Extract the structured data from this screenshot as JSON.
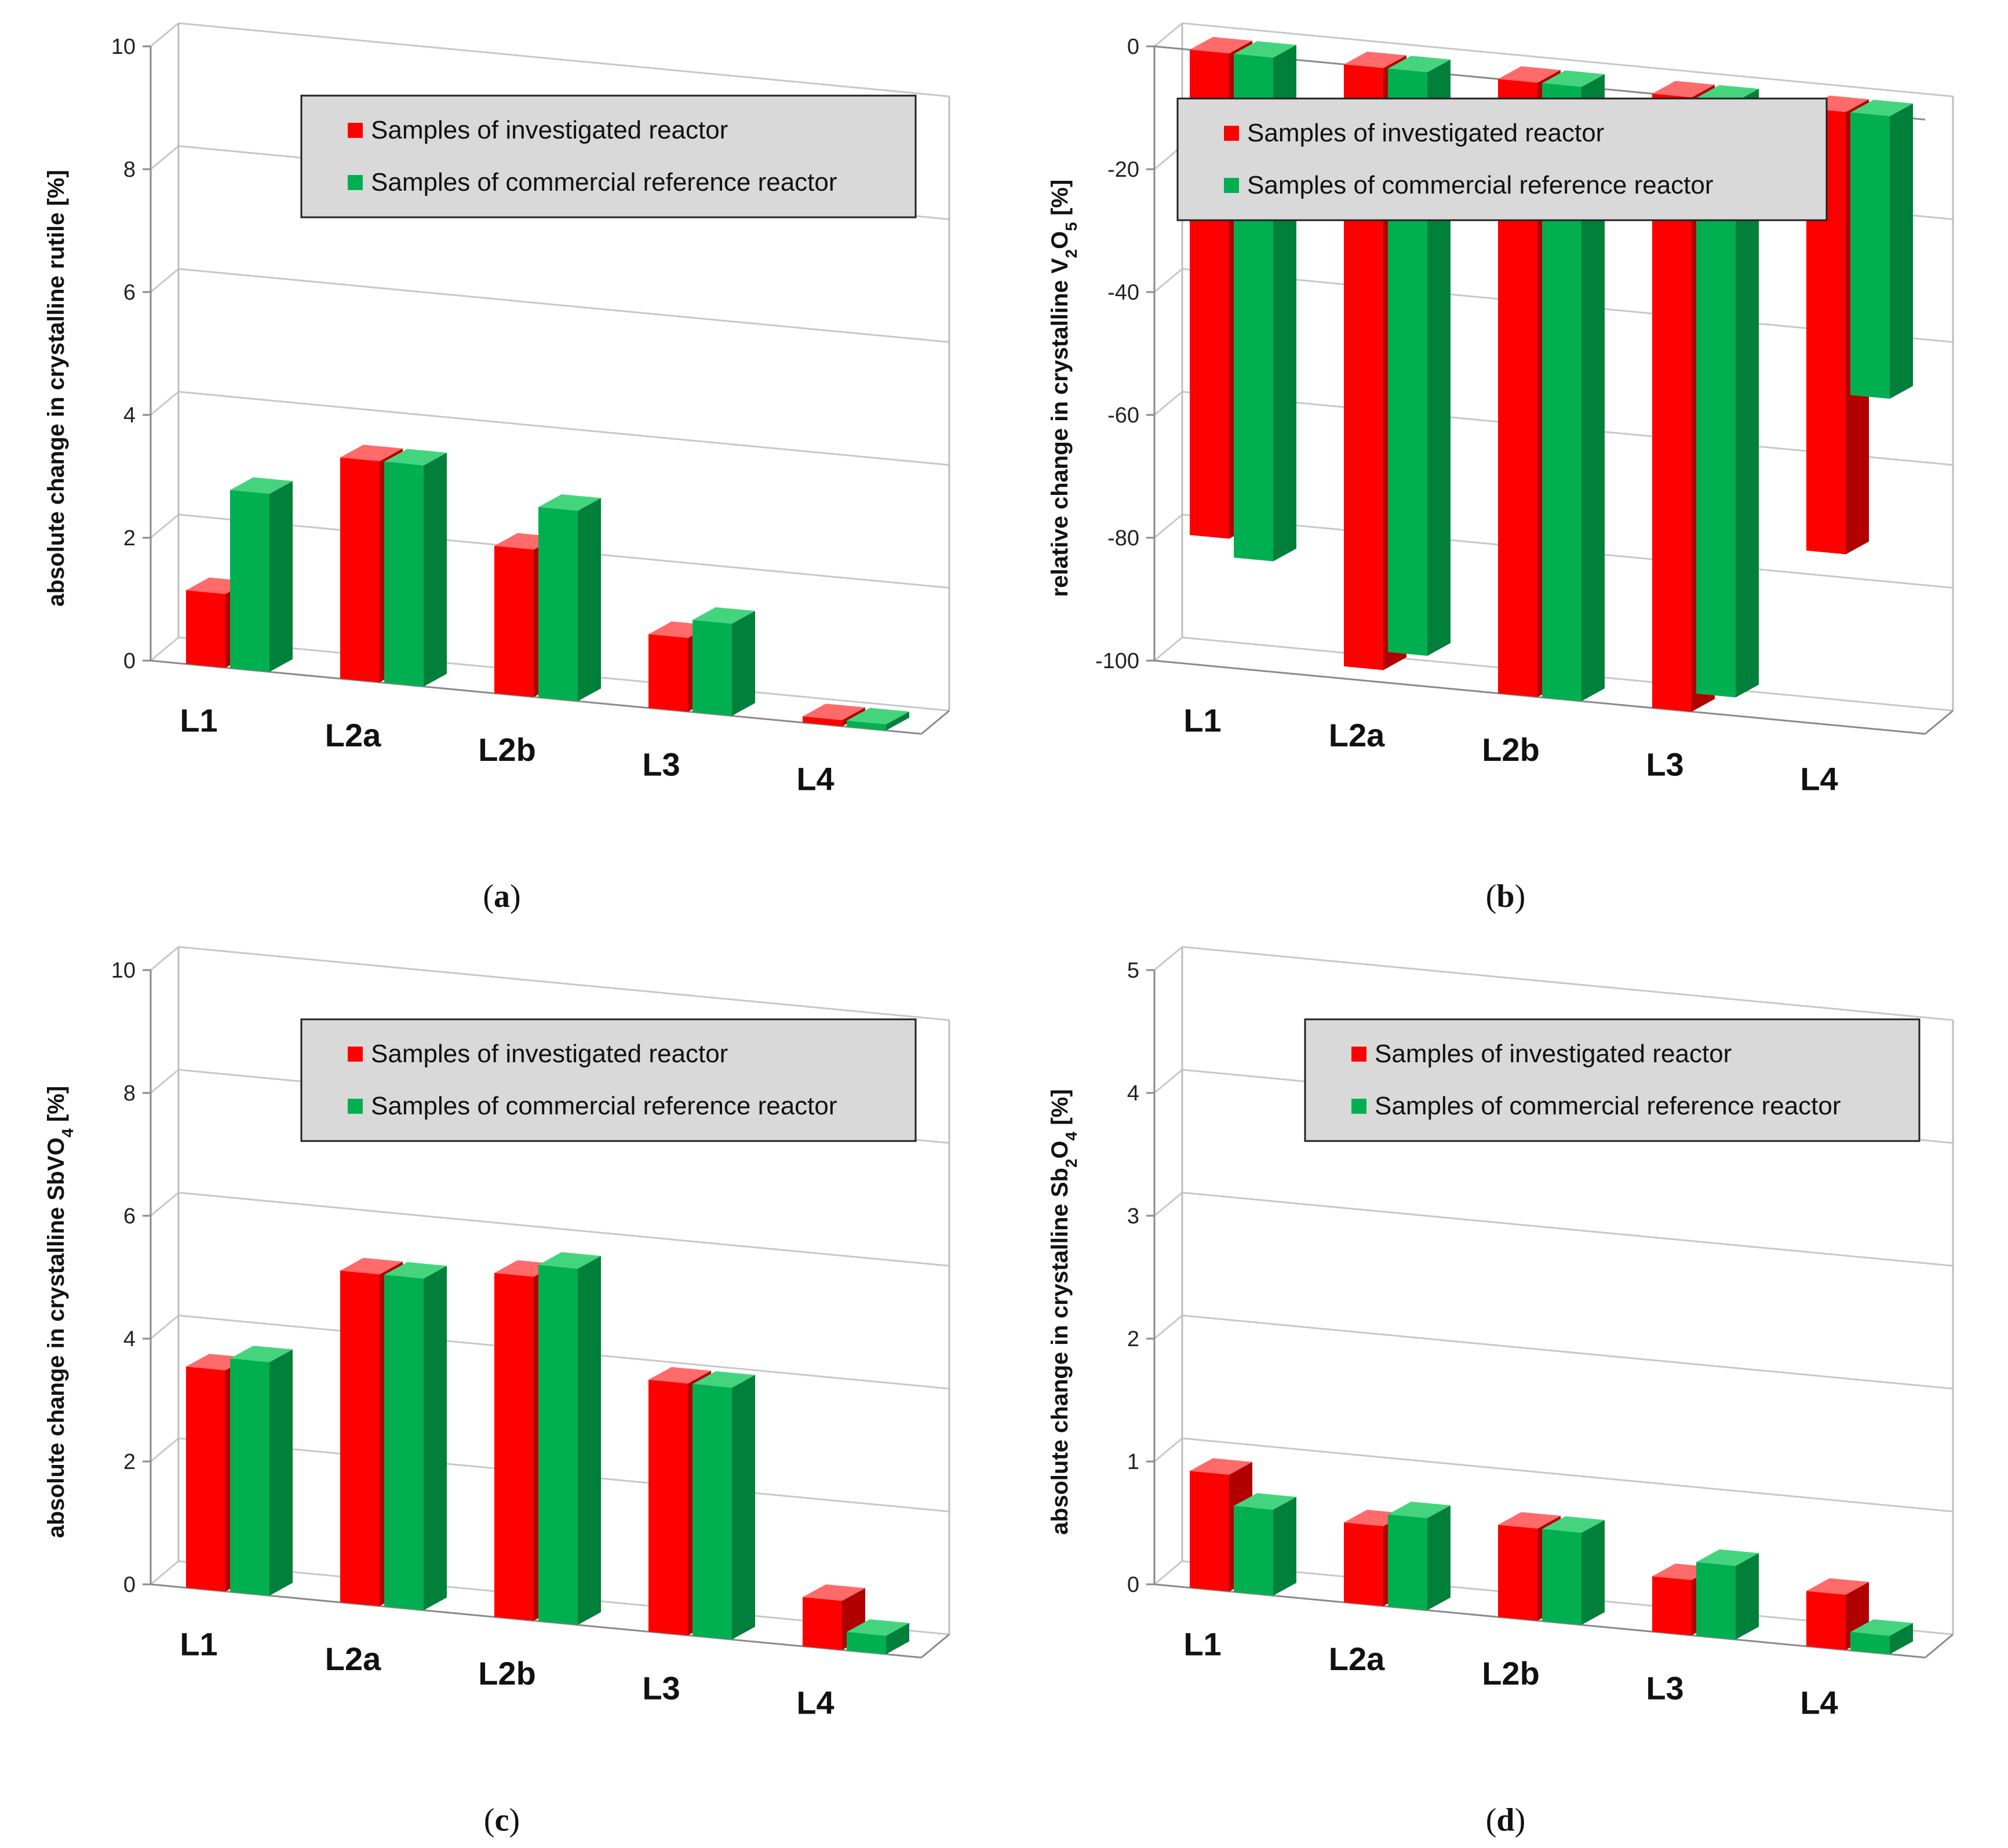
{
  "figure": {
    "legend": {
      "series1": "Samples of investigated reactor",
      "series2": "Samples of commercial reference reactor"
    },
    "colors": {
      "investigated": "#ff0000",
      "investigated_side": "#b00000",
      "investigated_top": "#ff6a6a",
      "reference": "#00b050",
      "reference_side": "#00803a",
      "reference_top": "#45d47e"
    }
  },
  "chart_data": [
    {
      "panel": "a",
      "type": "bar",
      "title": "",
      "ylabel_parts": [
        "absolute change in crystalline rutile [%]"
      ],
      "ylim": [
        0,
        10
      ],
      "yticks": [
        "0",
        "2",
        "4",
        "6",
        "8",
        "10"
      ],
      "categories": [
        "L1",
        "L2a",
        "L2b",
        "L3",
        "L4"
      ],
      "series": [
        {
          "name": "Samples of investigated reactor",
          "values": [
            1.2,
            3.6,
            2.4,
            1.2,
            0.1
          ]
        },
        {
          "name": "Samples of commercial reference reactor",
          "values": [
            2.9,
            3.6,
            3.1,
            1.5,
            0.1
          ]
        }
      ],
      "caption": "a"
    },
    {
      "panel": "b",
      "type": "bar",
      "title": "",
      "ylabel_parts": [
        "relative change in crystalline V",
        "2",
        "O",
        "5",
        " [%]"
      ],
      "ylim": [
        -100,
        0
      ],
      "yticks": [
        "0",
        "-20",
        "-40",
        "-60",
        "-80",
        "-100"
      ],
      "categories": [
        "L1",
        "L2a",
        "L2b",
        "L3",
        "L4"
      ],
      "series": [
        {
          "name": "Samples of investigated reactor",
          "values": [
            -79,
            -98,
            -100,
            -100,
            -72
          ]
        },
        {
          "name": "Samples of commercial reference reactor",
          "values": [
            -82,
            -95,
            -100,
            -97,
            -46
          ]
        }
      ],
      "caption": "b"
    },
    {
      "panel": "c",
      "type": "bar",
      "title": "",
      "ylabel_parts": [
        "absolute change in crystalline SbVO",
        "4",
        " [%]"
      ],
      "ylim": [
        0,
        10
      ],
      "yticks": [
        "0",
        "2",
        "4",
        "6",
        "8",
        "10"
      ],
      "categories": [
        "L1",
        "L2a",
        "L2b",
        "L3",
        "L4"
      ],
      "series": [
        {
          "name": "Samples of investigated reactor",
          "values": [
            3.6,
            5.4,
            5.6,
            4.1,
            0.8
          ]
        },
        {
          "name": "Samples of commercial reference reactor",
          "values": [
            3.8,
            5.4,
            5.8,
            4.1,
            0.3
          ]
        }
      ],
      "caption": "c"
    },
    {
      "panel": "d",
      "type": "bar",
      "title": "",
      "ylabel_parts": [
        "absolute change in crystalline Sb",
        "2",
        "O",
        "4",
        " [%]"
      ],
      "ylim": [
        0,
        5
      ],
      "yticks": [
        "0",
        "1",
        "2",
        "3",
        "4",
        "5"
      ],
      "categories": [
        "L1",
        "L2a",
        "L2b",
        "L3",
        "L4"
      ],
      "series": [
        {
          "name": "Samples of investigated reactor",
          "values": [
            0.95,
            0.65,
            0.75,
            0.45,
            0.45
          ]
        },
        {
          "name": "Samples of commercial reference reactor",
          "values": [
            0.7,
            0.75,
            0.75,
            0.6,
            0.15
          ]
        }
      ],
      "caption": "d"
    }
  ]
}
